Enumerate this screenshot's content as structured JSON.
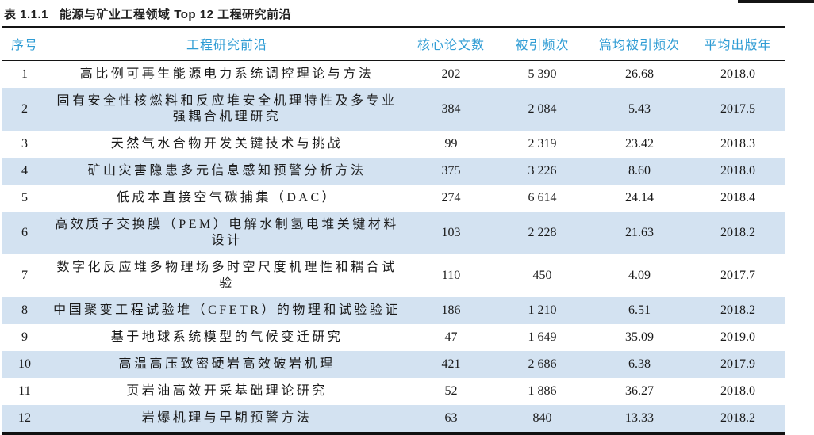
{
  "caption": {
    "label": "表 1.1.1",
    "title": "能源与矿业工程领域 Top 12 工程研究前沿"
  },
  "colors": {
    "header_text": "#2f9cd4",
    "row_stripe": "#d3e2f1",
    "rule": "#141414",
    "body_text": "#1a1a1a"
  },
  "table": {
    "columns": [
      "序号",
      "工程研究前沿",
      "核心论文数",
      "被引频次",
      "篇均被引频次",
      "平均出版年"
    ],
    "rows": [
      {
        "no": "1",
        "front": "高比例可再生能源电力系统调控理论与方法",
        "papers": "202",
        "citations": "5 390",
        "cpp": "26.68",
        "year": "2018.0"
      },
      {
        "no": "2",
        "front": "固有安全性核燃料和反应堆安全机理特性及多专业强耦合机理研究",
        "papers": "384",
        "citations": "2 084",
        "cpp": "5.43",
        "year": "2017.5"
      },
      {
        "no": "3",
        "front": "天然气水合物开发关键技术与挑战",
        "papers": "99",
        "citations": "2 319",
        "cpp": "23.42",
        "year": "2018.3"
      },
      {
        "no": "4",
        "front": "矿山灾害隐患多元信息感知预警分析方法",
        "papers": "375",
        "citations": "3 226",
        "cpp": "8.60",
        "year": "2018.0"
      },
      {
        "no": "5",
        "front": "低成本直接空气碳捕集（DAC）",
        "papers": "274",
        "citations": "6 614",
        "cpp": "24.14",
        "year": "2018.4"
      },
      {
        "no": "6",
        "front": "高效质子交换膜（PEM）电解水制氢电堆关键材料设计",
        "papers": "103",
        "citations": "2 228",
        "cpp": "21.63",
        "year": "2018.2"
      },
      {
        "no": "7",
        "front": "数字化反应堆多物理场多时空尺度机理性和耦合试验",
        "papers": "110",
        "citations": "450",
        "cpp": "4.09",
        "year": "2017.7"
      },
      {
        "no": "8",
        "front": "中国聚变工程试验堆（CFETR）的物理和试验验证",
        "papers": "186",
        "citations": "1 210",
        "cpp": "6.51",
        "year": "2018.2"
      },
      {
        "no": "9",
        "front": "基于地球系统模型的气候变迁研究",
        "papers": "47",
        "citations": "1 649",
        "cpp": "35.09",
        "year": "2019.0"
      },
      {
        "no": "10",
        "front": "高温高压致密硬岩高效破岩机理",
        "papers": "421",
        "citations": "2 686",
        "cpp": "6.38",
        "year": "2017.9"
      },
      {
        "no": "11",
        "front": "页岩油高效开采基础理论研究",
        "papers": "52",
        "citations": "1 886",
        "cpp": "36.27",
        "year": "2018.0"
      },
      {
        "no": "12",
        "front": "岩爆机理与早期预警方法",
        "papers": "63",
        "citations": "840",
        "cpp": "13.33",
        "year": "2018.2"
      }
    ]
  }
}
